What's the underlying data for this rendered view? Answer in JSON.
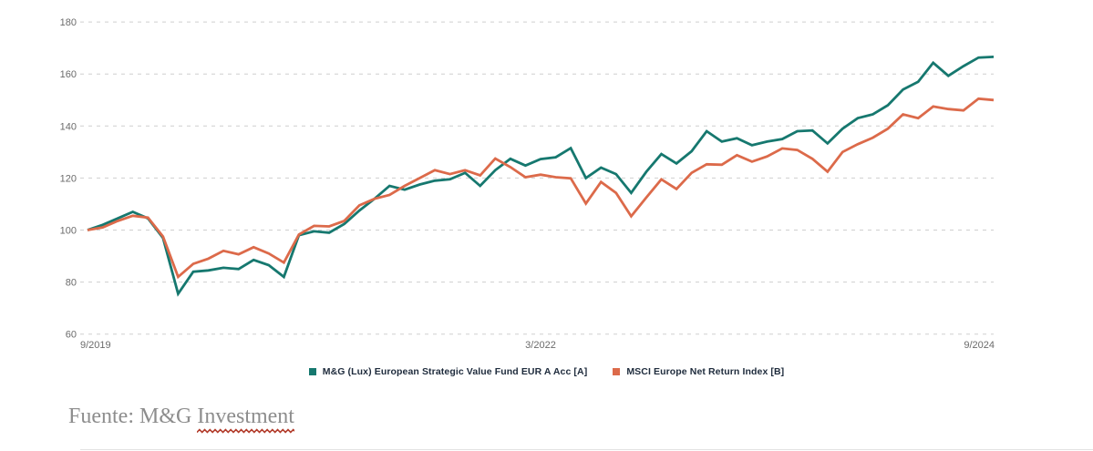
{
  "colors": {
    "fund_line": "#16786f",
    "index_line": "#dc6a4a",
    "grid": "#cfcfcf",
    "tick_text": "#6b6b6b",
    "legend_text": "#1e2b3c",
    "source_text": "#8d8d8d",
    "squiggle": "#b23b2a"
  },
  "legend": {
    "items": [
      {
        "label": "M&G (Lux) European Strategic Value Fund EUR A Acc [A]",
        "color": "#16786f"
      },
      {
        "label": "MSCI Europe Net Return Index [B]",
        "color": "#dc6a4a"
      }
    ]
  },
  "source_note": {
    "prefix": "Fuente: M&G ",
    "underlined_word": "Investment"
  },
  "chart_data": {
    "type": "line",
    "title": "",
    "xlabel": "",
    "ylabel": "",
    "x_unit": "monthly index points from 9/2019 to 9/2024 (61 points)",
    "x_tick_labels": [
      "9/2019",
      "3/2022",
      "9/2024"
    ],
    "x_tick_months": [
      0,
      30,
      60
    ],
    "ylim": [
      60,
      180
    ],
    "y_ticks": [
      180,
      160,
      140,
      120,
      100,
      80,
      60
    ],
    "grid": "horizontal dashed",
    "legend_position": "bottom-center",
    "series": [
      {
        "name": "M&G (Lux) European Strategic Value Fund EUR A Acc [A]",
        "color": "#16786f",
        "values": [
          100,
          102,
          104.5,
          107,
          104.5,
          97,
          75.5,
          84,
          84.5,
          85.5,
          85,
          88.5,
          86.5,
          82,
          98,
          99.5,
          99,
          102.3,
          107.5,
          112,
          117,
          115.5,
          117.5,
          119,
          119.5,
          122,
          117,
          123,
          127.4,
          124.8,
          127.3,
          128,
          131.5,
          120,
          124,
          121.5,
          114.3,
          122.4,
          129.2,
          125.6,
          130.3,
          138,
          134,
          135.3,
          132.6,
          134,
          135,
          138,
          138.3,
          133.3,
          139,
          143,
          144.5,
          148,
          154,
          157,
          164.3,
          159.3,
          163,
          166.3,
          166.6
        ]
      },
      {
        "name": "MSCI Europe Net Return Index [B]",
        "color": "#dc6a4a",
        "values": [
          100,
          101,
          103.5,
          105.5,
          104.8,
          97.5,
          82,
          87,
          89,
          92,
          90.7,
          93.4,
          91,
          87.5,
          98.3,
          101.6,
          101.4,
          103.5,
          109.5,
          112,
          113.5,
          117,
          120,
          123,
          121.5,
          123,
          121,
          127.5,
          124.2,
          120.3,
          121.3,
          120.3,
          119.9,
          110.2,
          118.5,
          114.3,
          105.3,
          112.5,
          119.5,
          115.8,
          122,
          125.3,
          125.1,
          128.8,
          126.3,
          128.3,
          131.4,
          130.8,
          127.4,
          122.4,
          130,
          133,
          135.5,
          139,
          144.5,
          143,
          147.5,
          146.5,
          146,
          150.5,
          150
        ]
      }
    ]
  }
}
